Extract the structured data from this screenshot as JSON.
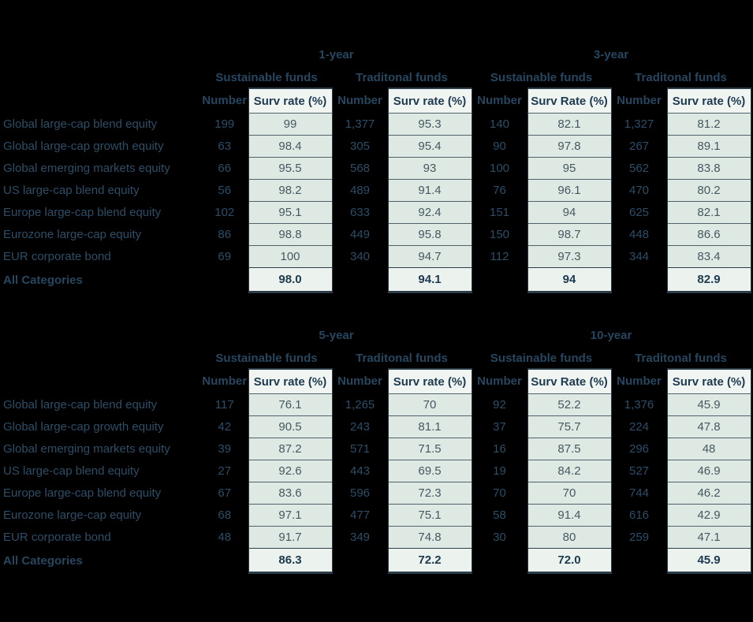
{
  "colors": {
    "background": "#000000",
    "text": "#2d4e67",
    "cell_background": "#dfe9e4",
    "header_cell_background": "#f0f5f1",
    "cell_text": "#46585f",
    "bold_text": "#1d3a50"
  },
  "chart_data": [
    {
      "type": "table",
      "periods": [
        {
          "title": "1-year",
          "groups": [
            {
              "label": "Sustainable funds",
              "number_header": "Number",
              "rate_header": "Surv rate (%)"
            },
            {
              "label": "Traditonal funds",
              "number_header": "Number",
              "rate_header": "Surv rate (%)"
            }
          ]
        },
        {
          "title": "3-year",
          "groups": [
            {
              "label": "Sustainable funds",
              "number_header": "Number",
              "rate_header": "Surv Rate (%)"
            },
            {
              "label": "Traditonal funds",
              "number_header": "Number",
              "rate_header": "Surv rate (%)"
            }
          ]
        }
      ],
      "rows": [
        {
          "label": "Global large-cap blend equity",
          "cells": [
            "199",
            "99",
            "1,377",
            "95.3",
            "140",
            "82.1",
            "1,327",
            "81.2"
          ],
          "total": false
        },
        {
          "label": "Global large-cap growth equity",
          "cells": [
            "63",
            "98.4",
            "305",
            "95.4",
            "90",
            "97.8",
            "267",
            "89.1"
          ],
          "total": false
        },
        {
          "label": "Global emerging markets equity",
          "cells": [
            "66",
            "95.5",
            "568",
            "93",
            "100",
            "95",
            "562",
            "83.8"
          ],
          "total": false
        },
        {
          "label": "US large-cap blend equity",
          "cells": [
            "56",
            "98.2",
            "489",
            "91.4",
            "76",
            "96.1",
            "470",
            "80.2"
          ],
          "total": false
        },
        {
          "label": "Europe large-cap blend equity",
          "cells": [
            "102",
            "95.1",
            "633",
            "92.4",
            "151",
            "94",
            "625",
            "82.1"
          ],
          "total": false
        },
        {
          "label": "Eurozone large-cap equity",
          "cells": [
            "86",
            "98.8",
            "449",
            "95.8",
            "150",
            "98.7",
            "448",
            "86.6"
          ],
          "total": false
        },
        {
          "label": "EUR corporate bond",
          "cells": [
            "69",
            "100",
            "340",
            "94.7",
            "112",
            "97.3",
            "344",
            "83.4"
          ],
          "total": false
        },
        {
          "label": "All Categories",
          "cells": [
            "",
            "98.0",
            "",
            "94.1",
            "",
            "94",
            "",
            "82.9"
          ],
          "total": true
        }
      ]
    },
    {
      "type": "table",
      "periods": [
        {
          "title": "5-year",
          "groups": [
            {
              "label": "Sustainable funds",
              "number_header": "Number",
              "rate_header": "Surv rate (%)"
            },
            {
              "label": "Traditonal funds",
              "number_header": "Number",
              "rate_header": "Surv rate (%)"
            }
          ]
        },
        {
          "title": "10-year",
          "groups": [
            {
              "label": "Sustainable funds",
              "number_header": "Number",
              "rate_header": "Surv Rate (%)"
            },
            {
              "label": "Traditonal funds",
              "number_header": "Number",
              "rate_header": "Surv rate (%)"
            }
          ]
        }
      ],
      "rows": [
        {
          "label": "Global large-cap blend equity",
          "cells": [
            "117",
            "76.1",
            "1,265",
            "70",
            "92",
            "52.2",
            "1,376",
            "45.9"
          ],
          "total": false
        },
        {
          "label": "Global large-cap growth equity",
          "cells": [
            "42",
            "90.5",
            "243",
            "81.1",
            "37",
            "75.7",
            "224",
            "47.8"
          ],
          "total": false
        },
        {
          "label": "Global emerging markets equity",
          "cells": [
            "39",
            "87.2",
            "571",
            "71.5",
            "16",
            "87.5",
            "296",
            "48"
          ],
          "total": false
        },
        {
          "label": "US large-cap blend equity",
          "cells": [
            "27",
            "92.6",
            "443",
            "69.5",
            "19",
            "84.2",
            "527",
            "46.9"
          ],
          "total": false
        },
        {
          "label": "Europe large-cap blend equity",
          "cells": [
            "67",
            "83.6",
            "596",
            "72.3",
            "70",
            "70",
            "744",
            "46.2"
          ],
          "total": false
        },
        {
          "label": "Eurozone large-cap equity",
          "cells": [
            "68",
            "97.1",
            "477",
            "75.1",
            "58",
            "91.4",
            "616",
            "42.9"
          ],
          "total": false
        },
        {
          "label": "EUR corporate bond",
          "cells": [
            "48",
            "91.7",
            "349",
            "74.8",
            "30",
            "80",
            "259",
            "47.1"
          ],
          "total": false
        },
        {
          "label": "All Categories",
          "cells": [
            "",
            "86.3",
            "",
            "72.2",
            "",
            "72.0",
            "",
            "45.9"
          ],
          "total": true
        }
      ]
    }
  ]
}
